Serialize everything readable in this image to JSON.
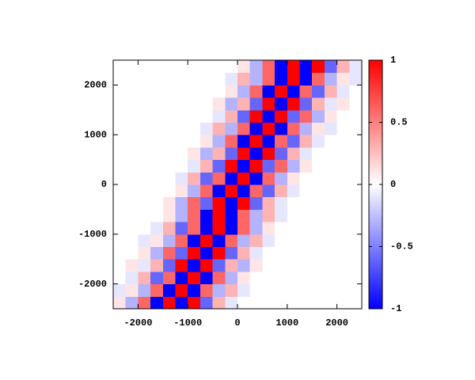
{
  "chart_data": {
    "type": "heatmap",
    "xlim": [
      -2500,
      2500
    ],
    "ylim": [
      -2500,
      2500
    ],
    "xticks": [
      -2000,
      -1000,
      0,
      1000,
      2000
    ],
    "yticks": [
      -2000,
      -1000,
      0,
      1000,
      2000
    ],
    "cblim": [
      -1,
      1
    ],
    "cbticks": [
      -1,
      -0.5,
      0,
      0.5,
      1
    ],
    "palette": [
      "#0000ff",
      "#ffffff",
      "#ff0000"
    ],
    "z": [
      [
        0.1,
        -0.3,
        0.6,
        -1,
        1,
        -1,
        1,
        -0.6,
        0.3,
        -0.1,
        0,
        0,
        0,
        0,
        0,
        0,
        0,
        0,
        0,
        0
      ],
      [
        -0.1,
        0.1,
        -0.3,
        0.6,
        -1,
        1,
        -1,
        0.6,
        -0.3,
        0.3,
        -0.1,
        0,
        0,
        0,
        0,
        0,
        0,
        0,
        0,
        0
      ],
      [
        0,
        -0.1,
        0.3,
        -0.6,
        0.6,
        -1,
        1,
        -1,
        0.6,
        -0.3,
        0.1,
        0,
        0,
        0,
        0,
        0,
        0,
        0,
        0,
        0
      ],
      [
        0,
        0.1,
        -0.1,
        0.3,
        -0.6,
        1,
        -1,
        1,
        -0.6,
        0.3,
        -0.3,
        0.1,
        0,
        0,
        0,
        0,
        0,
        0,
        0,
        0
      ],
      [
        0,
        0,
        0.1,
        -0.3,
        0.6,
        -0.6,
        1,
        -1,
        1,
        -0.6,
        0.3,
        -0.1,
        0,
        0,
        0,
        0,
        0,
        0,
        0,
        0
      ],
      [
        0,
        0,
        -0.1,
        0.1,
        -0.3,
        0.6,
        -1,
        1,
        -1,
        0.6,
        -0.3,
        0.3,
        -0.1,
        0,
        0,
        0,
        0,
        0,
        0,
        0
      ],
      [
        0,
        0,
        0,
        -0.1,
        0.3,
        -0.6,
        0.6,
        -1,
        1,
        -1,
        0.6,
        -0.3,
        0.1,
        0,
        0,
        0,
        0,
        0,
        0,
        0
      ],
      [
        0,
        0,
        0,
        0,
        0.1,
        -0.3,
        0.6,
        -1,
        1,
        -1,
        0.6,
        -0.3,
        0.3,
        -0.1,
        0,
        0,
        0,
        0,
        0,
        0
      ],
      [
        0,
        0,
        0,
        0,
        0.1,
        -0.3,
        0.6,
        -0.6,
        1,
        -1,
        1,
        -0.6,
        0.3,
        -0.1,
        0,
        0,
        0,
        0,
        0,
        0
      ],
      [
        0,
        0,
        0,
        0,
        0,
        0.1,
        -0.3,
        0.6,
        -1,
        1,
        -1,
        0.6,
        -0.6,
        0.3,
        -0.1,
        0,
        0,
        0,
        0,
        0
      ],
      [
        0,
        0,
        0,
        0,
        0,
        -0.1,
        0.3,
        -0.6,
        0.6,
        -1,
        1,
        -1,
        0.6,
        -0.3,
        0.1,
        0,
        0,
        0,
        0,
        0
      ],
      [
        0,
        0,
        0,
        0,
        0,
        0,
        -0.1,
        0.3,
        -0.6,
        1,
        -1,
        1,
        -0.6,
        0.6,
        -0.3,
        0.1,
        0,
        0,
        0,
        0
      ],
      [
        0,
        0,
        0,
        0,
        0,
        0,
        0.1,
        -0.3,
        0.3,
        -0.6,
        1,
        -1,
        1,
        -0.6,
        0.3,
        -0.1,
        0,
        0,
        0,
        0
      ],
      [
        0,
        0,
        0,
        0,
        0,
        0,
        0,
        0.1,
        -0.3,
        0.6,
        -1,
        1,
        -1,
        0.6,
        -0.6,
        0.3,
        -0.1,
        0,
        0,
        0
      ],
      [
        0,
        0,
        0,
        0,
        0,
        0,
        0,
        -0.1,
        0.3,
        -0.3,
        0.6,
        -1,
        1,
        -1,
        0.6,
        -0.3,
        0.1,
        -0.1,
        0,
        0
      ],
      [
        0,
        0,
        0,
        0,
        0,
        0,
        0,
        0,
        -0.1,
        0.3,
        -0.6,
        1,
        -1,
        1,
        -0.6,
        0.6,
        -0.3,
        0.1,
        0,
        0
      ],
      [
        0,
        0,
        0,
        0,
        0,
        0,
        0,
        0,
        0.1,
        -0.3,
        0.3,
        -0.6,
        1,
        -1,
        1,
        -0.6,
        0.3,
        -0.1,
        0.1,
        0
      ],
      [
        0,
        0,
        0,
        0,
        0,
        0,
        0,
        0,
        0,
        0.1,
        -0.3,
        0.6,
        -1,
        1,
        -1,
        0.6,
        -0.6,
        0.3,
        -0.1,
        0
      ],
      [
        0,
        0,
        0,
        0,
        0,
        0,
        0,
        0,
        0,
        -0.1,
        0.3,
        -0.3,
        0.6,
        -1,
        1,
        -1,
        0.6,
        -0.3,
        0.1,
        -0.1
      ],
      [
        0,
        0,
        0,
        0,
        0,
        0,
        0,
        0,
        0,
        0,
        0.1,
        -0.3,
        0.6,
        -1,
        1,
        -1,
        1,
        -0.6,
        0.3,
        -0.1
      ]
    ]
  }
}
